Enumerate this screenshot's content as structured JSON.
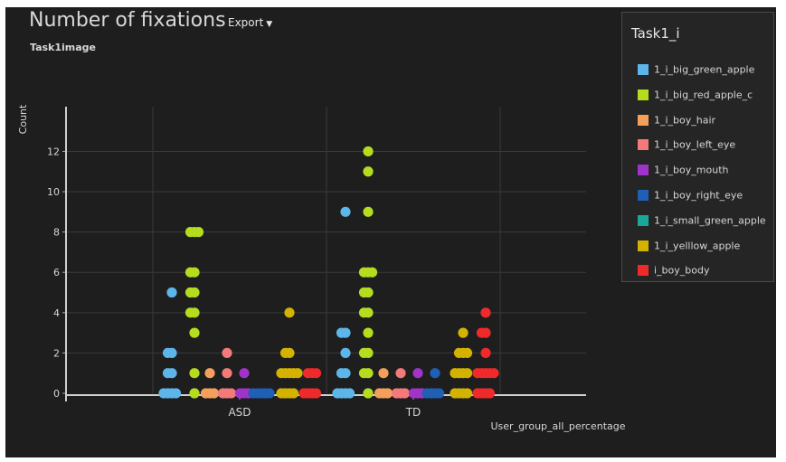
{
  "header": {
    "title": "Number of fixations",
    "export_label": "Export",
    "subtitle": "Task1image"
  },
  "legend": {
    "title": "Task1_i"
  },
  "chart_data": {
    "type": "scatter",
    "title": "Number of fixations",
    "subtitle": "Task1image",
    "xlabel": "User_group_all_percentage",
    "ylabel": "Count",
    "categories": [
      "ASD",
      "TD"
    ],
    "ylim": [
      0,
      14
    ],
    "yticks": [
      0,
      2,
      4,
      6,
      8,
      10,
      12
    ],
    "grid": true,
    "legend_position": "right",
    "series": [
      {
        "name": "1_i_big_green_apple",
        "color": "#5db6ea",
        "points": {
          "ASD": [
            0,
            0,
            0,
            0,
            1,
            1,
            2,
            2,
            5
          ],
          "TD": [
            0,
            0,
            0,
            0,
            1,
            1,
            2,
            3,
            3,
            9
          ]
        }
      },
      {
        "name": "1_i_big_red_apple_c",
        "color": "#b5dc1f",
        "points": {
          "ASD": [
            0,
            1,
            3,
            4,
            4,
            5,
            5,
            6,
            6,
            8,
            8,
            8
          ],
          "TD": [
            0,
            1,
            1,
            2,
            2,
            3,
            4,
            4,
            5,
            5,
            6,
            6,
            6,
            9,
            11,
            12
          ]
        }
      },
      {
        "name": "1_i_boy_hair",
        "color": "#f5a05a",
        "points": {
          "ASD": [
            0,
            0,
            0,
            1
          ],
          "TD": [
            0,
            0,
            0,
            1
          ]
        }
      },
      {
        "name": "1_i_boy_left_eye",
        "color": "#f47a7a",
        "points": {
          "ASD": [
            0,
            0,
            0,
            1,
            2
          ],
          "TD": [
            0,
            0,
            0,
            1
          ]
        }
      },
      {
        "name": "1_i_boy_mouth",
        "color": "#a033c8",
        "points": {
          "ASD": [
            0,
            0,
            0,
            1
          ],
          "TD": [
            0,
            0,
            0,
            1
          ]
        }
      },
      {
        "name": "1_i_boy_right_eye",
        "color": "#1f5fb4",
        "points": {
          "ASD": [
            0,
            0,
            0,
            0,
            0
          ],
          "TD": [
            0,
            0,
            0,
            0,
            1
          ]
        }
      },
      {
        "name": "1_i_small_green_apple",
        "color": "#17a89a",
        "points": {
          "ASD": [],
          "TD": []
        }
      },
      {
        "name": "1_i_yelllow_apple",
        "color": "#d4b300",
        "points": {
          "ASD": [
            0,
            0,
            0,
            0,
            1,
            1,
            1,
            1,
            1,
            2,
            2,
            4
          ],
          "TD": [
            0,
            0,
            0,
            0,
            1,
            1,
            1,
            1,
            2,
            2,
            2,
            3
          ]
        }
      },
      {
        "name": "i_boy_body",
        "color": "#f02a2a",
        "points": {
          "ASD": [
            0,
            0,
            0,
            0,
            1,
            1,
            1
          ],
          "TD": [
            0,
            0,
            0,
            0,
            1,
            1,
            1,
            1,
            1,
            2,
            3,
            3,
            4
          ]
        }
      }
    ]
  }
}
